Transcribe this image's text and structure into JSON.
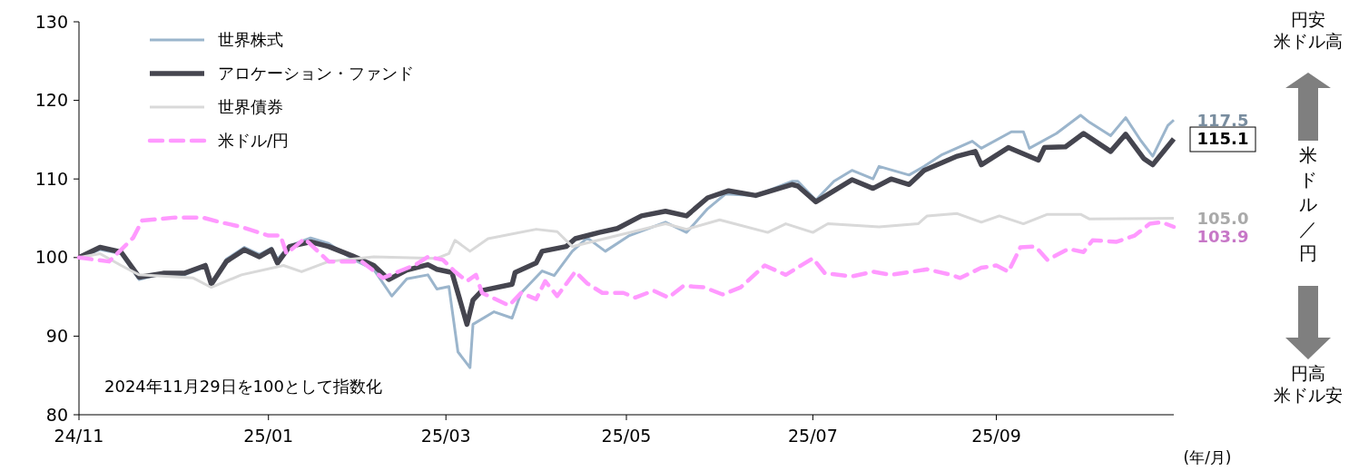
{
  "chart_data": {
    "type": "line",
    "xlabel": "(年/月)",
    "ylim": [
      80,
      130
    ],
    "yticks": [
      80,
      90,
      100,
      110,
      120,
      130
    ],
    "xlim": [
      "2024-11-29",
      "2025-11-28"
    ],
    "xticks": [
      {
        "value": "2024-11-29",
        "label": "24/11"
      },
      {
        "value": "2025-01-31",
        "label": "25/01"
      },
      {
        "value": "2025-03-31",
        "label": "25/03"
      },
      {
        "value": "2025-05-30",
        "label": "25/05"
      },
      {
        "value": "2025-07-31",
        "label": "25/07"
      },
      {
        "value": "2025-09-30",
        "label": "25/09"
      }
    ],
    "grid": false,
    "legend": "top left",
    "marker": "none",
    "annotations": [
      "2024年11月29日を100として指数化",
      "円安",
      "米ドル高",
      "米ドル／円",
      "円高",
      "米ドル安"
    ],
    "series": [
      {
        "name": "世界株式",
        "color": "#9bb5cc",
        "line_style": "solid",
        "x": [
          "2024-11-29",
          "2024-12-06",
          "2024-12-13",
          "2024-12-19",
          "2024-12-27",
          "2025-01-03",
          "2025-01-10",
          "2025-01-12",
          "2025-01-17",
          "2025-01-23",
          "2025-01-28",
          "2025-02-01",
          "2025-02-03",
          "2025-02-07",
          "2025-02-14",
          "2025-02-20",
          "2025-02-28",
          "2025-03-07",
          "2025-03-13",
          "2025-03-18",
          "2025-03-25",
          "2025-03-28",
          "2025-04-01",
          "2025-04-04",
          "2025-04-08",
          "2025-04-09",
          "2025-04-16",
          "2025-04-22",
          "2025-04-25",
          "2025-05-02",
          "2025-05-06",
          "2025-05-12",
          "2025-05-17",
          "2025-05-23",
          "2025-05-31",
          "2025-06-12",
          "2025-06-19",
          "2025-06-26",
          "2025-07-02",
          "2025-07-12",
          "2025-07-24",
          "2025-07-26",
          "2025-08-01",
          "2025-08-07",
          "2025-08-13",
          "2025-08-20",
          "2025-08-22",
          "2025-09-01",
          "2025-09-06",
          "2025-09-12",
          "2025-09-22",
          "2025-09-25",
          "2025-10-05",
          "2025-10-09",
          "2025-10-11",
          "2025-10-20",
          "2025-10-28",
          "2025-10-31",
          "2025-11-07",
          "2025-11-12",
          "2025-11-17",
          "2025-11-21",
          "2025-11-26",
          "2025-11-28"
        ],
        "values": [
          100,
          101.0,
          100.5,
          97.2,
          98.0,
          97.8,
          98.8,
          96.4,
          99.8,
          101.3,
          100.4,
          101.2,
          99.8,
          101.5,
          102.5,
          101.8,
          99.8,
          98.5,
          95.1,
          97.3,
          97.8,
          96.0,
          96.3,
          88.0,
          86.0,
          91.5,
          93.1,
          92.3,
          95.5,
          98.3,
          97.7,
          100.8,
          102.5,
          100.8,
          102.8,
          104.5,
          103.2,
          106.2,
          108.1,
          107.9,
          109.7,
          109.7,
          107.3,
          109.7,
          111.1,
          110.0,
          111.6,
          110.5,
          111.6,
          113.1,
          114.8,
          113.9,
          116.0,
          116.0,
          113.9,
          115.8,
          118.1,
          117.2,
          115.5,
          117.8,
          114.9,
          112.9,
          116.8,
          117.5
        ],
        "value_labels": [
          null,
          null,
          null,
          null,
          null,
          null,
          null,
          null,
          null,
          null,
          null,
          null,
          null,
          null,
          null,
          null,
          null,
          null,
          null,
          null,
          null,
          null,
          null,
          null,
          null,
          null,
          null,
          null,
          null,
          null,
          null,
          null,
          null,
          null,
          null,
          null,
          null,
          null,
          null,
          null,
          null,
          null,
          null,
          null,
          null,
          null,
          null,
          null,
          null,
          null,
          null,
          null,
          null,
          null,
          null,
          null,
          null,
          null,
          null,
          null,
          null,
          null,
          null,
          "117.5"
        ]
      },
      {
        "name": "アロケーション・ファンド",
        "color": "#45454f",
        "line_style": "solid",
        "x": [
          "2024-11-29",
          "2024-12-06",
          "2024-12-13",
          "2024-12-19",
          "2024-12-27",
          "2025-01-03",
          "2025-01-10",
          "2025-01-12",
          "2025-01-17",
          "2025-01-23",
          "2025-01-28",
          "2025-02-01",
          "2025-02-03",
          "2025-02-07",
          "2025-02-14",
          "2025-02-20",
          "2025-02-28",
          "2025-03-07",
          "2025-03-12",
          "2025-03-18",
          "2025-03-25",
          "2025-03-28",
          "2025-04-02",
          "2025-04-07",
          "2025-04-09",
          "2025-04-12",
          "2025-04-22",
          "2025-04-23",
          "2025-04-30",
          "2025-05-02",
          "2025-05-10",
          "2025-05-13",
          "2025-05-21",
          "2025-05-27",
          "2025-06-04",
          "2025-06-12",
          "2025-06-19",
          "2025-06-26",
          "2025-07-03",
          "2025-07-12",
          "2025-07-24",
          "2025-07-26",
          "2025-08-01",
          "2025-08-13",
          "2025-08-20",
          "2025-08-26",
          "2025-09-01",
          "2025-09-06",
          "2025-09-17",
          "2025-09-23",
          "2025-09-25",
          "2025-10-04",
          "2025-10-14",
          "2025-10-16",
          "2025-10-23",
          "2025-10-29",
          "2025-11-07",
          "2025-11-12",
          "2025-11-18",
          "2025-11-21",
          "2025-11-28"
        ],
        "values": [
          100,
          101.3,
          100.7,
          97.5,
          98.0,
          98.0,
          99.0,
          96.6,
          99.5,
          101.0,
          100.1,
          101.0,
          99.3,
          101.4,
          102.0,
          101.4,
          100.2,
          99.0,
          97.2,
          98.4,
          99.1,
          98.5,
          98.1,
          91.5,
          94.6,
          95.8,
          96.6,
          98.1,
          99.3,
          100.8,
          101.4,
          102.4,
          103.2,
          103.7,
          105.3,
          105.9,
          105.3,
          107.6,
          108.5,
          107.9,
          109.3,
          109.1,
          107.1,
          109.9,
          108.8,
          110.0,
          109.3,
          111.1,
          112.9,
          113.5,
          111.8,
          114.0,
          112.4,
          114.0,
          114.1,
          115.8,
          113.5,
          115.7,
          112.6,
          111.8,
          115.1
        ],
        "value_labels": [
          null,
          null,
          null,
          null,
          null,
          null,
          null,
          null,
          null,
          null,
          null,
          null,
          null,
          null,
          null,
          null,
          null,
          null,
          null,
          null,
          null,
          null,
          null,
          null,
          null,
          null,
          null,
          null,
          null,
          null,
          null,
          null,
          null,
          null,
          null,
          null,
          null,
          null,
          null,
          null,
          null,
          null,
          null,
          null,
          null,
          null,
          null,
          null,
          null,
          null,
          null,
          null,
          null,
          null,
          null,
          null,
          null,
          null,
          null,
          null,
          "115.1"
        ]
      },
      {
        "name": "世界債券",
        "color": "#d9d9d9",
        "line_style": "solid",
        "x": [
          "2024-11-29",
          "2024-12-06",
          "2024-12-13",
          "2024-12-19",
          "2025-01-06",
          "2025-01-12",
          "2025-01-22",
          "2025-02-05",
          "2025-02-11",
          "2025-02-20",
          "2025-03-07",
          "2025-03-28",
          "2025-04-01",
          "2025-04-03",
          "2025-04-08",
          "2025-04-14",
          "2025-04-30",
          "2025-05-07",
          "2025-05-12",
          "2025-05-27",
          "2025-06-12",
          "2025-06-19",
          "2025-06-30",
          "2025-07-16",
          "2025-07-22",
          "2025-07-31",
          "2025-08-05",
          "2025-08-22",
          "2025-09-04",
          "2025-09-07",
          "2025-09-17",
          "2025-09-25",
          "2025-10-01",
          "2025-10-09",
          "2025-10-17",
          "2025-10-28",
          "2025-10-31",
          "2025-11-28"
        ],
        "values": [
          100,
          100.5,
          99.0,
          97.8,
          97.4,
          96.2,
          97.8,
          99.0,
          98.2,
          99.5,
          100.1,
          99.9,
          100.5,
          102.2,
          100.8,
          102.4,
          103.6,
          103.3,
          101.4,
          102.8,
          104.3,
          103.6,
          104.8,
          103.2,
          104.3,
          103.2,
          104.3,
          103.9,
          104.3,
          105.3,
          105.6,
          104.5,
          105.3,
          104.3,
          105.5,
          105.5,
          104.9,
          105.0
        ],
        "value_labels": [
          null,
          null,
          null,
          null,
          null,
          null,
          null,
          null,
          null,
          null,
          null,
          null,
          null,
          null,
          null,
          null,
          null,
          null,
          null,
          null,
          null,
          null,
          null,
          null,
          null,
          null,
          null,
          null,
          null,
          null,
          null,
          null,
          null,
          null,
          null,
          null,
          null,
          "105.0"
        ]
      },
      {
        "name": "米ドル/円",
        "color": "#ff99ff",
        "line_style": "dashed",
        "x": [
          "2024-11-29",
          "2024-12-09",
          "2024-12-17",
          "2024-12-20",
          "2024-12-31",
          "2025-01-09",
          "2025-01-15",
          "2025-01-22",
          "2025-01-31",
          "2025-02-04",
          "2025-02-06",
          "2025-02-12",
          "2025-02-20",
          "2025-03-03",
          "2025-03-10",
          "2025-03-21",
          "2025-03-25",
          "2025-03-30",
          "2025-04-03",
          "2025-04-07",
          "2025-04-10",
          "2025-04-12",
          "2025-04-21",
          "2025-04-25",
          "2025-04-30",
          "2025-05-03",
          "2025-05-07",
          "2025-05-13",
          "2025-05-17",
          "2025-05-22",
          "2025-05-29",
          "2025-06-02",
          "2025-06-08",
          "2025-06-13",
          "2025-06-18",
          "2025-06-25",
          "2025-07-01",
          "2025-07-07",
          "2025-07-15",
          "2025-07-22",
          "2025-07-31",
          "2025-08-04",
          "2025-08-13",
          "2025-08-20",
          "2025-08-26",
          "2025-09-07",
          "2025-09-15",
          "2025-09-18",
          "2025-09-25",
          "2025-09-30",
          "2025-10-04",
          "2025-10-08",
          "2025-10-13",
          "2025-10-17",
          "2025-10-24",
          "2025-10-29",
          "2025-11-01",
          "2025-11-09",
          "2025-11-15",
          "2025-11-20",
          "2025-11-24",
          "2025-11-28"
        ],
        "values": [
          100,
          99.5,
          102.5,
          104.7,
          105.1,
          105.1,
          104.5,
          103.9,
          102.8,
          102.8,
          100.5,
          102.4,
          99.5,
          99.5,
          97.4,
          99.1,
          100.1,
          99.7,
          98.2,
          97.0,
          97.8,
          95.5,
          93.9,
          95.5,
          94.7,
          97.0,
          95.1,
          98.2,
          96.7,
          95.5,
          95.5,
          94.9,
          95.8,
          94.9,
          96.4,
          96.2,
          95.3,
          96.2,
          99.0,
          97.8,
          99.9,
          98.0,
          97.6,
          98.2,
          97.8,
          98.5,
          97.8,
          97.4,
          98.7,
          99.0,
          98.2,
          101.3,
          101.4,
          99.7,
          101.1,
          100.7,
          102.2,
          102.0,
          102.8,
          104.3,
          104.5,
          103.9
        ],
        "value_labels": [
          null,
          null,
          null,
          null,
          null,
          null,
          null,
          null,
          null,
          null,
          null,
          null,
          null,
          null,
          null,
          null,
          null,
          null,
          null,
          null,
          null,
          null,
          null,
          null,
          null,
          null,
          null,
          null,
          null,
          null,
          null,
          null,
          null,
          null,
          null,
          null,
          null,
          null,
          null,
          null,
          null,
          null,
          null,
          null,
          null,
          null,
          null,
          null,
          null,
          null,
          null,
          null,
          null,
          null,
          null,
          null,
          null,
          null,
          null,
          null,
          null,
          "103.9"
        ]
      }
    ]
  }
}
